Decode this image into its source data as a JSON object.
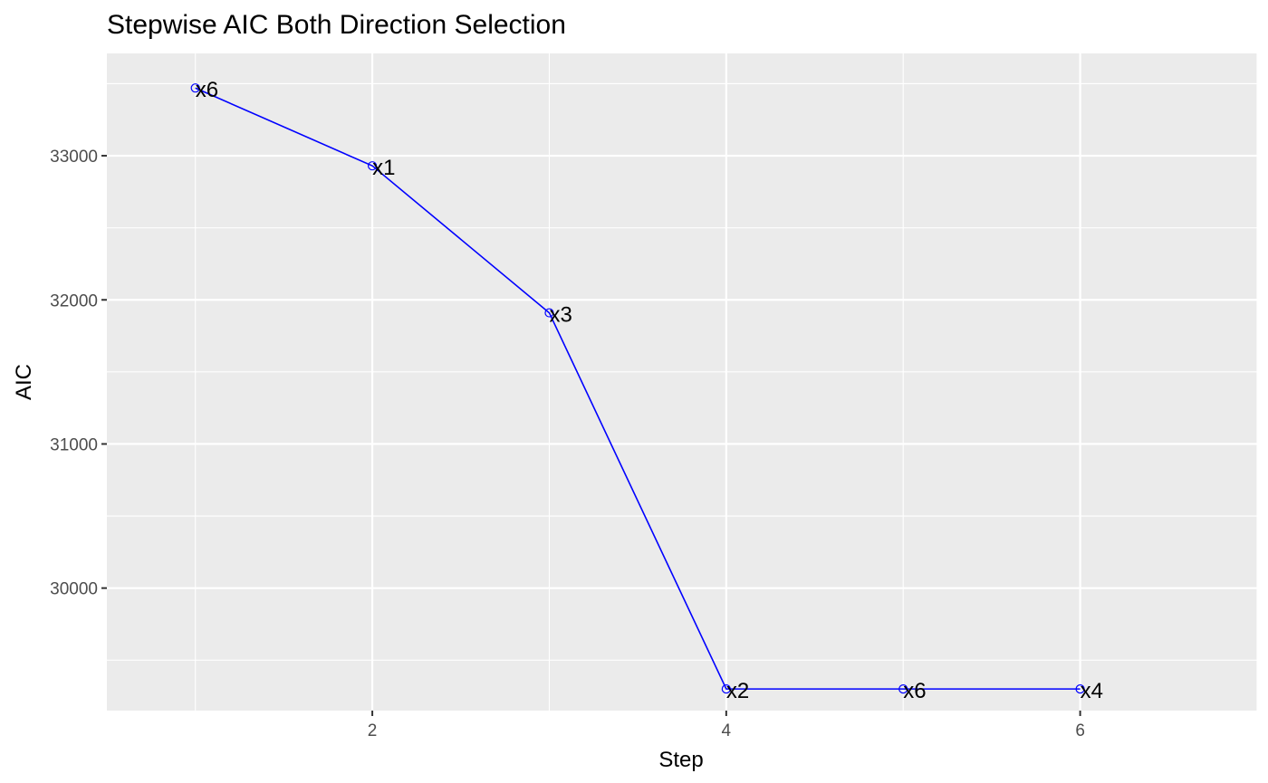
{
  "chart_data": {
    "type": "line",
    "title": "Stepwise AIC Both Direction Selection",
    "xlabel": "Step",
    "ylabel": "AIC",
    "x": [
      1,
      2,
      3,
      4,
      5,
      6
    ],
    "series": [
      {
        "values": [
          33470,
          32930,
          31910,
          29300,
          29300,
          29300
        ],
        "point_labels": [
          "x6",
          "x1",
          "x3",
          "x2",
          "x6",
          "x4"
        ],
        "color": "#0000ff"
      }
    ],
    "xlim": [
      0.5,
      7.0
    ],
    "ylim": [
      29150,
      33710
    ],
    "x_ticks": [
      2,
      4,
      6
    ],
    "y_ticks": [
      30000,
      31000,
      32000,
      33000
    ],
    "x_tick_labels": [
      "2",
      "4",
      "6"
    ],
    "y_tick_labels": [
      "30000",
      "31000",
      "32000",
      "33000"
    ],
    "grid": true,
    "legend": "none",
    "panel_background": "#ebebeb",
    "grid_color": "#ffffff"
  }
}
